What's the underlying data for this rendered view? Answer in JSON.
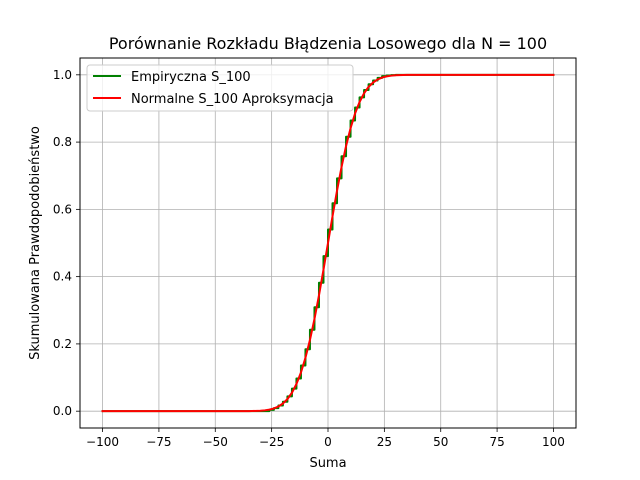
{
  "chart_data": {
    "type": "line",
    "title": "Porównanie Rozkładu Błądzenia Losowego dla N = 100",
    "xlabel": "Suma",
    "ylabel": "Skumulowana Prawdopodobieństwo",
    "xlim": [
      -110,
      110
    ],
    "ylim": [
      -0.05,
      1.05
    ],
    "xticks": [
      -100,
      -75,
      -50,
      -25,
      0,
      25,
      50,
      75,
      100
    ],
    "xtick_labels": [
      "−100",
      "−75",
      "−50",
      "−25",
      "0",
      "25",
      "50",
      "75",
      "100"
    ],
    "yticks": [
      0.0,
      0.2,
      0.4,
      0.6,
      0.8,
      1.0
    ],
    "ytick_labels": [
      "0.0",
      "0.2",
      "0.4",
      "0.6",
      "0.8",
      "1.0"
    ],
    "grid": true,
    "legend_position": "top-left",
    "series": [
      {
        "name": "Empiryczna S_100",
        "color": "#008000",
        "style": "step",
        "x": [
          -100,
          -30,
          -26,
          -24,
          -22,
          -20,
          -18,
          -16,
          -14,
          -12,
          -10,
          -8,
          -6,
          -4,
          -2,
          0,
          2,
          4,
          6,
          8,
          10,
          12,
          14,
          16,
          18,
          20,
          22,
          24,
          26,
          28,
          30,
          100
        ],
        "y": [
          0.0,
          0.0,
          0.004,
          0.009,
          0.017,
          0.028,
          0.044,
          0.067,
          0.097,
          0.136,
          0.184,
          0.242,
          0.309,
          0.382,
          0.461,
          0.54,
          0.618,
          0.692,
          0.758,
          0.816,
          0.864,
          0.903,
          0.933,
          0.955,
          0.972,
          0.983,
          0.991,
          0.996,
          0.998,
          0.999,
          1.0,
          1.0
        ]
      },
      {
        "name": "Normalne S_100 Aproksymacja",
        "color": "#ff0000",
        "style": "line",
        "x": [
          -100,
          -50,
          -40,
          -35,
          -30,
          -28,
          -26,
          -24,
          -22,
          -20,
          -18,
          -16,
          -14,
          -12,
          -10,
          -8,
          -6,
          -4,
          -2,
          0,
          2,
          4,
          6,
          8,
          10,
          12,
          14,
          16,
          18,
          20,
          22,
          24,
          26,
          28,
          30,
          35,
          40,
          50,
          100
        ],
        "y": [
          0.0,
          0.0,
          0.0,
          0.0002,
          0.0013,
          0.0026,
          0.0047,
          0.0082,
          0.0139,
          0.0228,
          0.0359,
          0.0548,
          0.0808,
          0.1151,
          0.1587,
          0.2119,
          0.2743,
          0.3446,
          0.4207,
          0.5,
          0.5793,
          0.6554,
          0.7257,
          0.7881,
          0.8413,
          0.8849,
          0.9192,
          0.9452,
          0.9641,
          0.9772,
          0.9861,
          0.9918,
          0.9953,
          0.9974,
          0.9987,
          0.9998,
          1.0,
          1.0,
          1.0
        ]
      }
    ]
  }
}
